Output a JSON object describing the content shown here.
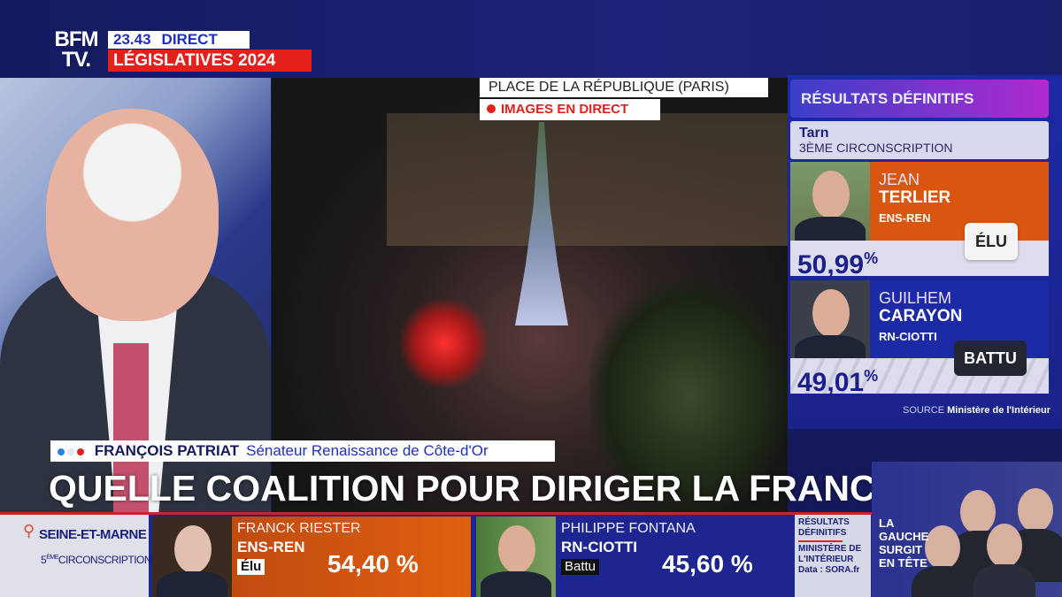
{
  "header": {
    "logo": "BFM TV.",
    "logo_line1": "BFM",
    "logo_line2": "TV.",
    "time": "23.43",
    "live_label": "DIRECT",
    "program": "LÉGISLATIVES 2024"
  },
  "video": {
    "location": "PLACE DE LA RÉPUBLIQUE (PARIS)",
    "live_tag": "IMAGES EN DIRECT"
  },
  "results_panel": {
    "title": "RÉSULTATS DÉFINITIFS",
    "department": "Tarn",
    "constituency": "3ÈME CIRCONSCRIPTION",
    "candidates": [
      {
        "first_name": "JEAN",
        "last_name": "TERLIER",
        "party": "ENS-REN",
        "percent": "50,99",
        "percent_sign": "%",
        "status": "ÉLU",
        "color": "#d9560f"
      },
      {
        "first_name": "GUILHEM",
        "last_name": "CARAYON",
        "party": "RN-CIOTTI",
        "percent": "49,01",
        "percent_sign": "%",
        "status": "BATTU",
        "color": "#1d2aa5"
      }
    ],
    "source_label": "SOURCE",
    "source": "Ministère de l'Intérieur"
  },
  "guest": {
    "name": "FRANÇOIS PATRIAT",
    "role": "Sénateur Renaissance de Côte-d'Or"
  },
  "headline": "QUELLE COALITION POUR DIRIGER LA FRANCE ?",
  "ticker": {
    "department": "SEINE-ET-MARNE",
    "constituency_num": "5",
    "constituency_sup": "ÈME",
    "constituency": "CIRCONSCRIPTION",
    "candidates": [
      {
        "name": "FRANCK RIESTER",
        "party": "ENS-REN",
        "status": "Élu",
        "percent": "54,40 %",
        "color": "#d9560f"
      },
      {
        "name": "PHILIPPE FONTANA",
        "party": "RN-CIOTTI",
        "status": "Battu",
        "percent": "45,60 %",
        "color": "#1c2590"
      }
    ],
    "source_title_1": "RÉSULTATS",
    "source_title_2": "DÉFINITIFS",
    "source_1": "MINISTÈRE DE",
    "source_2": "L'INTÉRIEUR",
    "data_credit": "Data : SORA.fr"
  },
  "promo": {
    "text": "LA GAUCHE SURGIT EN TÊTE"
  },
  "colors": {
    "brand_navy": "#151a5c",
    "accent_red": "#e3201b",
    "orange": "#d9560f",
    "blue": "#1d2aa5"
  }
}
